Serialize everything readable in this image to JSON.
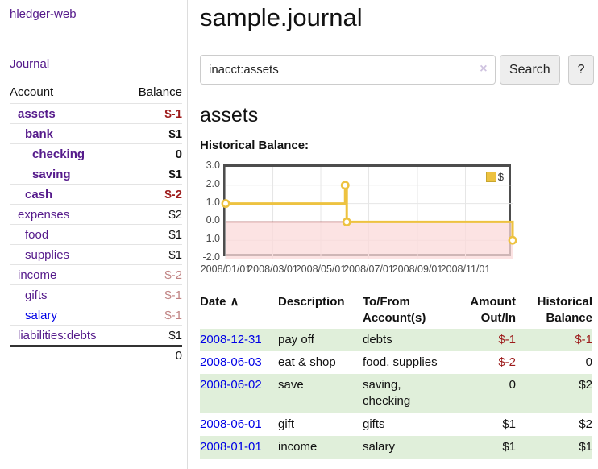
{
  "app": {
    "brand": "hledger-web",
    "nav_journal": "Journal"
  },
  "sidebar": {
    "header": {
      "account": "Account",
      "balance": "Balance"
    },
    "accounts": [
      {
        "name": "assets",
        "balance": "$-1"
      },
      {
        "name": "bank",
        "balance": "$1"
      },
      {
        "name": "checking",
        "balance": "0"
      },
      {
        "name": "saving",
        "balance": "$1"
      },
      {
        "name": "cash",
        "balance": "$-2"
      },
      {
        "name": "expenses",
        "balance": "$2"
      },
      {
        "name": "food",
        "balance": "$1"
      },
      {
        "name": "supplies",
        "balance": "$1"
      },
      {
        "name": "income",
        "balance": "$-2"
      },
      {
        "name": "gifts",
        "balance": "$-1"
      },
      {
        "name": "salary",
        "balance": "$-1"
      },
      {
        "name": "liabilities:debts",
        "balance": "$1"
      }
    ],
    "total": "0"
  },
  "main": {
    "title": "sample.journal",
    "search": {
      "value": "inacct:assets",
      "clear_icon": "×",
      "button": "Search",
      "help_button": "?"
    },
    "account_heading": "assets",
    "chart_label": "Historical Balance:"
  },
  "chart_data": {
    "type": "line",
    "title": "Historical Balance:",
    "step": true,
    "series": [
      {
        "name": "$",
        "color": "#edc240",
        "points": [
          {
            "x": "2008-01-01",
            "y": 1
          },
          {
            "x": "2008-06-01",
            "y": 2
          },
          {
            "x": "2008-06-03",
            "y": 0
          },
          {
            "x": "2008-12-31",
            "y": -1
          }
        ]
      }
    ],
    "xlim": [
      "2008-01-01",
      "2009-01-01"
    ],
    "ylim": [
      -2,
      3
    ],
    "x_ticks": [
      "2008/01/01",
      "2008/03/01",
      "2008/05/01",
      "2008/07/01",
      "2008/09/01",
      "2008/11/01"
    ],
    "y_ticks": [
      {
        "v": 3,
        "label": "3.0"
      },
      {
        "v": 2,
        "label": "2.0"
      },
      {
        "v": 1,
        "label": "1.0"
      },
      {
        "v": 0,
        "label": "0.0"
      },
      {
        "v": -1,
        "label": "-1.0"
      },
      {
        "v": -2,
        "label": "-2.0"
      }
    ],
    "grid": true,
    "legend_position": "top-right",
    "negative_fill": "#fbd9d9",
    "zero_line_color": "#8b1a1a"
  },
  "register": {
    "sort_icon": "∧",
    "headers": [
      {
        "l1": "Date",
        "l2": ""
      },
      {
        "l1": "Description",
        "l2": ""
      },
      {
        "l1": "To/From",
        "l2": "Account(s)"
      },
      {
        "l1": "Amount",
        "l2": "Out/In"
      },
      {
        "l1": "Historical",
        "l2": "Balance"
      }
    ],
    "rows": [
      {
        "date": "2008-12-31",
        "description": "pay off",
        "accounts": "debts",
        "amount": "$-1",
        "balance": "$-1"
      },
      {
        "date": "2008-06-03",
        "description": "eat & shop",
        "accounts": "food, supplies",
        "amount": "$-2",
        "balance": "0"
      },
      {
        "date": "2008-06-02",
        "description": "save",
        "accounts": "saving, checking",
        "amount": "0",
        "balance": "$2"
      },
      {
        "date": "2008-06-01",
        "description": "gift",
        "accounts": "gifts",
        "amount": "$1",
        "balance": "$2"
      },
      {
        "date": "2008-01-01",
        "description": "income",
        "accounts": "salary",
        "amount": "$1",
        "balance": "$1"
      }
    ]
  }
}
